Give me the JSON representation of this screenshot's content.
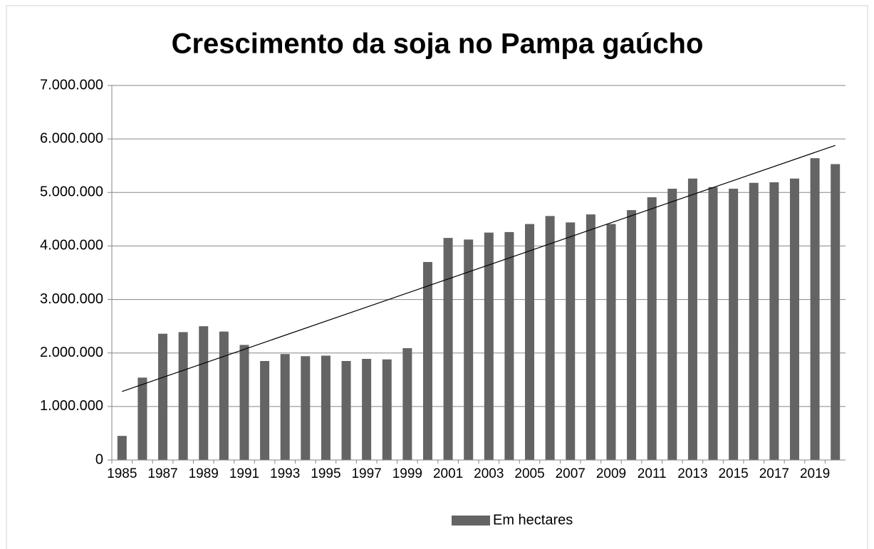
{
  "chart_data": {
    "type": "bar",
    "title": "Crescimento da soja no Pampa gaúcho",
    "categories": [
      "1985",
      null,
      "1987",
      null,
      "1989",
      null,
      "1991",
      null,
      "1993",
      null,
      "1995",
      null,
      "1997",
      null,
      "1999",
      null,
      "2001",
      null,
      "2003",
      null,
      "2005",
      null,
      "2007",
      null,
      "2009",
      null,
      "2011",
      null,
      "2013",
      null,
      "2015",
      null,
      "2017",
      null,
      "2019",
      null
    ],
    "series": [
      {
        "name": "Em hectares",
        "color": "#646464",
        "values": [
          450000,
          1540000,
          2360000,
          2390000,
          2500000,
          2400000,
          2150000,
          1850000,
          1980000,
          1940000,
          1950000,
          1850000,
          1890000,
          1880000,
          2090000,
          3700000,
          4150000,
          4120000,
          4250000,
          4260000,
          4410000,
          4560000,
          4440000,
          4590000,
          4410000,
          4670000,
          4910000,
          5070000,
          5260000,
          5100000,
          5070000,
          5180000,
          5190000,
          5260000,
          5640000,
          5530000
        ]
      }
    ],
    "trendline": [
      1280000,
      5880000
    ],
    "ylim": [
      0,
      7000000
    ],
    "yticks": [
      0,
      {
        "value": 1000000,
        "label": "1.000.000"
      },
      {
        "value": 2000000,
        "label": "2.000.000"
      },
      {
        "value": 3000000,
        "label": "3.000.000"
      },
      {
        "value": 4000000,
        "label": "4.000.000"
      },
      {
        "value": 5000000,
        "label": "5.000.000"
      },
      {
        "value": 6000000,
        "label": "6.000.000"
      },
      {
        "value": 7000000,
        "label": "7.000.000"
      }
    ],
    "grid": true,
    "legend": "bottom"
  }
}
